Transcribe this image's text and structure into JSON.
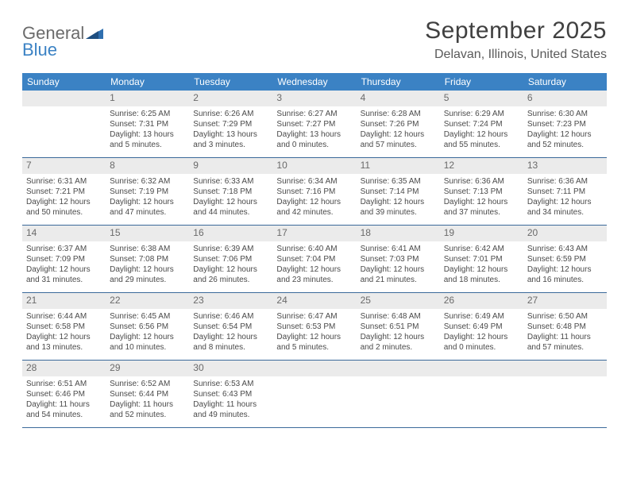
{
  "logo": {
    "word1": "General",
    "word2": "Blue"
  },
  "title": "September 2025",
  "location": "Delavan, Illinois, United States",
  "colors": {
    "header_bar": "#3b82c4",
    "daynum_bg": "#ebebeb",
    "week_border": "#3b6a9a",
    "text": "#4a4a4a",
    "title_text": "#404040"
  },
  "weekdays": [
    "Sunday",
    "Monday",
    "Tuesday",
    "Wednesday",
    "Thursday",
    "Friday",
    "Saturday"
  ],
  "start_offset": 1,
  "days": [
    {
      "n": 1,
      "sunrise": "6:25 AM",
      "sunset": "7:31 PM",
      "daylight": "13 hours and 5 minutes."
    },
    {
      "n": 2,
      "sunrise": "6:26 AM",
      "sunset": "7:29 PM",
      "daylight": "13 hours and 3 minutes."
    },
    {
      "n": 3,
      "sunrise": "6:27 AM",
      "sunset": "7:27 PM",
      "daylight": "13 hours and 0 minutes."
    },
    {
      "n": 4,
      "sunrise": "6:28 AM",
      "sunset": "7:26 PM",
      "daylight": "12 hours and 57 minutes."
    },
    {
      "n": 5,
      "sunrise": "6:29 AM",
      "sunset": "7:24 PM",
      "daylight": "12 hours and 55 minutes."
    },
    {
      "n": 6,
      "sunrise": "6:30 AM",
      "sunset": "7:23 PM",
      "daylight": "12 hours and 52 minutes."
    },
    {
      "n": 7,
      "sunrise": "6:31 AM",
      "sunset": "7:21 PM",
      "daylight": "12 hours and 50 minutes."
    },
    {
      "n": 8,
      "sunrise": "6:32 AM",
      "sunset": "7:19 PM",
      "daylight": "12 hours and 47 minutes."
    },
    {
      "n": 9,
      "sunrise": "6:33 AM",
      "sunset": "7:18 PM",
      "daylight": "12 hours and 44 minutes."
    },
    {
      "n": 10,
      "sunrise": "6:34 AM",
      "sunset": "7:16 PM",
      "daylight": "12 hours and 42 minutes."
    },
    {
      "n": 11,
      "sunrise": "6:35 AM",
      "sunset": "7:14 PM",
      "daylight": "12 hours and 39 minutes."
    },
    {
      "n": 12,
      "sunrise": "6:36 AM",
      "sunset": "7:13 PM",
      "daylight": "12 hours and 37 minutes."
    },
    {
      "n": 13,
      "sunrise": "6:36 AM",
      "sunset": "7:11 PM",
      "daylight": "12 hours and 34 minutes."
    },
    {
      "n": 14,
      "sunrise": "6:37 AM",
      "sunset": "7:09 PM",
      "daylight": "12 hours and 31 minutes."
    },
    {
      "n": 15,
      "sunrise": "6:38 AM",
      "sunset": "7:08 PM",
      "daylight": "12 hours and 29 minutes."
    },
    {
      "n": 16,
      "sunrise": "6:39 AM",
      "sunset": "7:06 PM",
      "daylight": "12 hours and 26 minutes."
    },
    {
      "n": 17,
      "sunrise": "6:40 AM",
      "sunset": "7:04 PM",
      "daylight": "12 hours and 23 minutes."
    },
    {
      "n": 18,
      "sunrise": "6:41 AM",
      "sunset": "7:03 PM",
      "daylight": "12 hours and 21 minutes."
    },
    {
      "n": 19,
      "sunrise": "6:42 AM",
      "sunset": "7:01 PM",
      "daylight": "12 hours and 18 minutes."
    },
    {
      "n": 20,
      "sunrise": "6:43 AM",
      "sunset": "6:59 PM",
      "daylight": "12 hours and 16 minutes."
    },
    {
      "n": 21,
      "sunrise": "6:44 AM",
      "sunset": "6:58 PM",
      "daylight": "12 hours and 13 minutes."
    },
    {
      "n": 22,
      "sunrise": "6:45 AM",
      "sunset": "6:56 PM",
      "daylight": "12 hours and 10 minutes."
    },
    {
      "n": 23,
      "sunrise": "6:46 AM",
      "sunset": "6:54 PM",
      "daylight": "12 hours and 8 minutes."
    },
    {
      "n": 24,
      "sunrise": "6:47 AM",
      "sunset": "6:53 PM",
      "daylight": "12 hours and 5 minutes."
    },
    {
      "n": 25,
      "sunrise": "6:48 AM",
      "sunset": "6:51 PM",
      "daylight": "12 hours and 2 minutes."
    },
    {
      "n": 26,
      "sunrise": "6:49 AM",
      "sunset": "6:49 PM",
      "daylight": "12 hours and 0 minutes."
    },
    {
      "n": 27,
      "sunrise": "6:50 AM",
      "sunset": "6:48 PM",
      "daylight": "11 hours and 57 minutes."
    },
    {
      "n": 28,
      "sunrise": "6:51 AM",
      "sunset": "6:46 PM",
      "daylight": "11 hours and 54 minutes."
    },
    {
      "n": 29,
      "sunrise": "6:52 AM",
      "sunset": "6:44 PM",
      "daylight": "11 hours and 52 minutes."
    },
    {
      "n": 30,
      "sunrise": "6:53 AM",
      "sunset": "6:43 PM",
      "daylight": "11 hours and 49 minutes."
    }
  ],
  "labels": {
    "sunrise": "Sunrise:",
    "sunset": "Sunset:",
    "daylight": "Daylight:"
  }
}
